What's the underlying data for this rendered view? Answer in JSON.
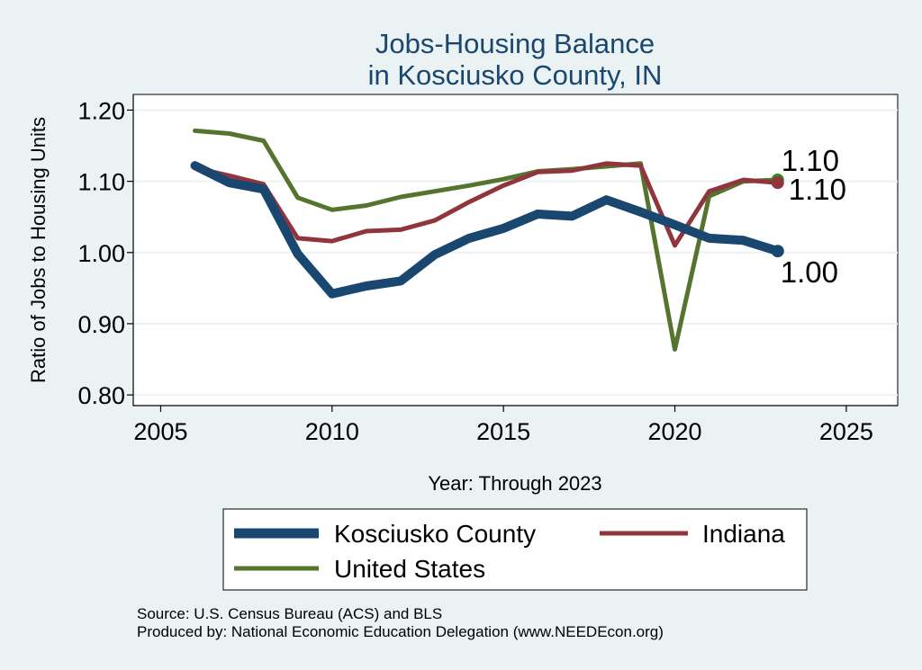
{
  "chart_data": {
    "type": "line",
    "title": [
      "Jobs-Housing Balance",
      "in Kosciusko County, IN"
    ],
    "xlabel": "Year: Through 2023",
    "ylabel": "Ratio of Jobs to Housing Units",
    "xlim": [
      2004.2,
      2026.5
    ],
    "ylim": [
      0.785,
      1.222
    ],
    "xticks": [
      2005,
      2010,
      2015,
      2020,
      2025
    ],
    "xtick_labels": [
      "2005",
      "2010",
      "2015",
      "2020",
      "2025"
    ],
    "yticks": [
      0.8,
      0.9,
      1.0,
      1.1,
      1.2
    ],
    "ytick_labels": [
      "0.80",
      "0.90",
      "1.00",
      "1.10",
      "1.20"
    ],
    "grid": true,
    "x": [
      2006,
      2007,
      2008,
      2009,
      2010,
      2011,
      2012,
      2013,
      2014,
      2015,
      2016,
      2017,
      2018,
      2019,
      2020,
      2021,
      2022,
      2023
    ],
    "series": [
      {
        "name": "Kosciusko County",
        "color": "#1a476f",
        "values": [
          1.122,
          1.098,
          1.089,
          0.998,
          0.942,
          0.953,
          0.96,
          0.997,
          1.02,
          1.034,
          1.054,
          1.051,
          1.074,
          1.057,
          1.039,
          1.02,
          1.017,
          1.002
        ],
        "end_label": "1.00"
      },
      {
        "name": "Indiana",
        "color": "#90353b",
        "values": [
          1.119,
          1.108,
          1.096,
          1.02,
          1.016,
          1.03,
          1.032,
          1.045,
          1.071,
          1.094,
          1.113,
          1.115,
          1.125,
          1.122,
          1.01,
          1.086,
          1.102,
          1.098
        ],
        "end_label": "1.10"
      },
      {
        "name": "United States",
        "color": "#55752f",
        "values": [
          1.171,
          1.167,
          1.157,
          1.077,
          1.06,
          1.066,
          1.078,
          1.086,
          1.094,
          1.103,
          1.114,
          1.117,
          1.121,
          1.125,
          0.864,
          1.079,
          1.1,
          1.102
        ],
        "end_label": "1.10"
      }
    ],
    "legend": {
      "placement": "bottom",
      "entries": [
        "Kosciusko County",
        "Indiana",
        "United States"
      ]
    },
    "notes": [
      "Source: U.S. Census Bureau (ACS) and BLS",
      "Produced by: National Economic Education Delegation (www.NEEDEcon.org)"
    ]
  }
}
